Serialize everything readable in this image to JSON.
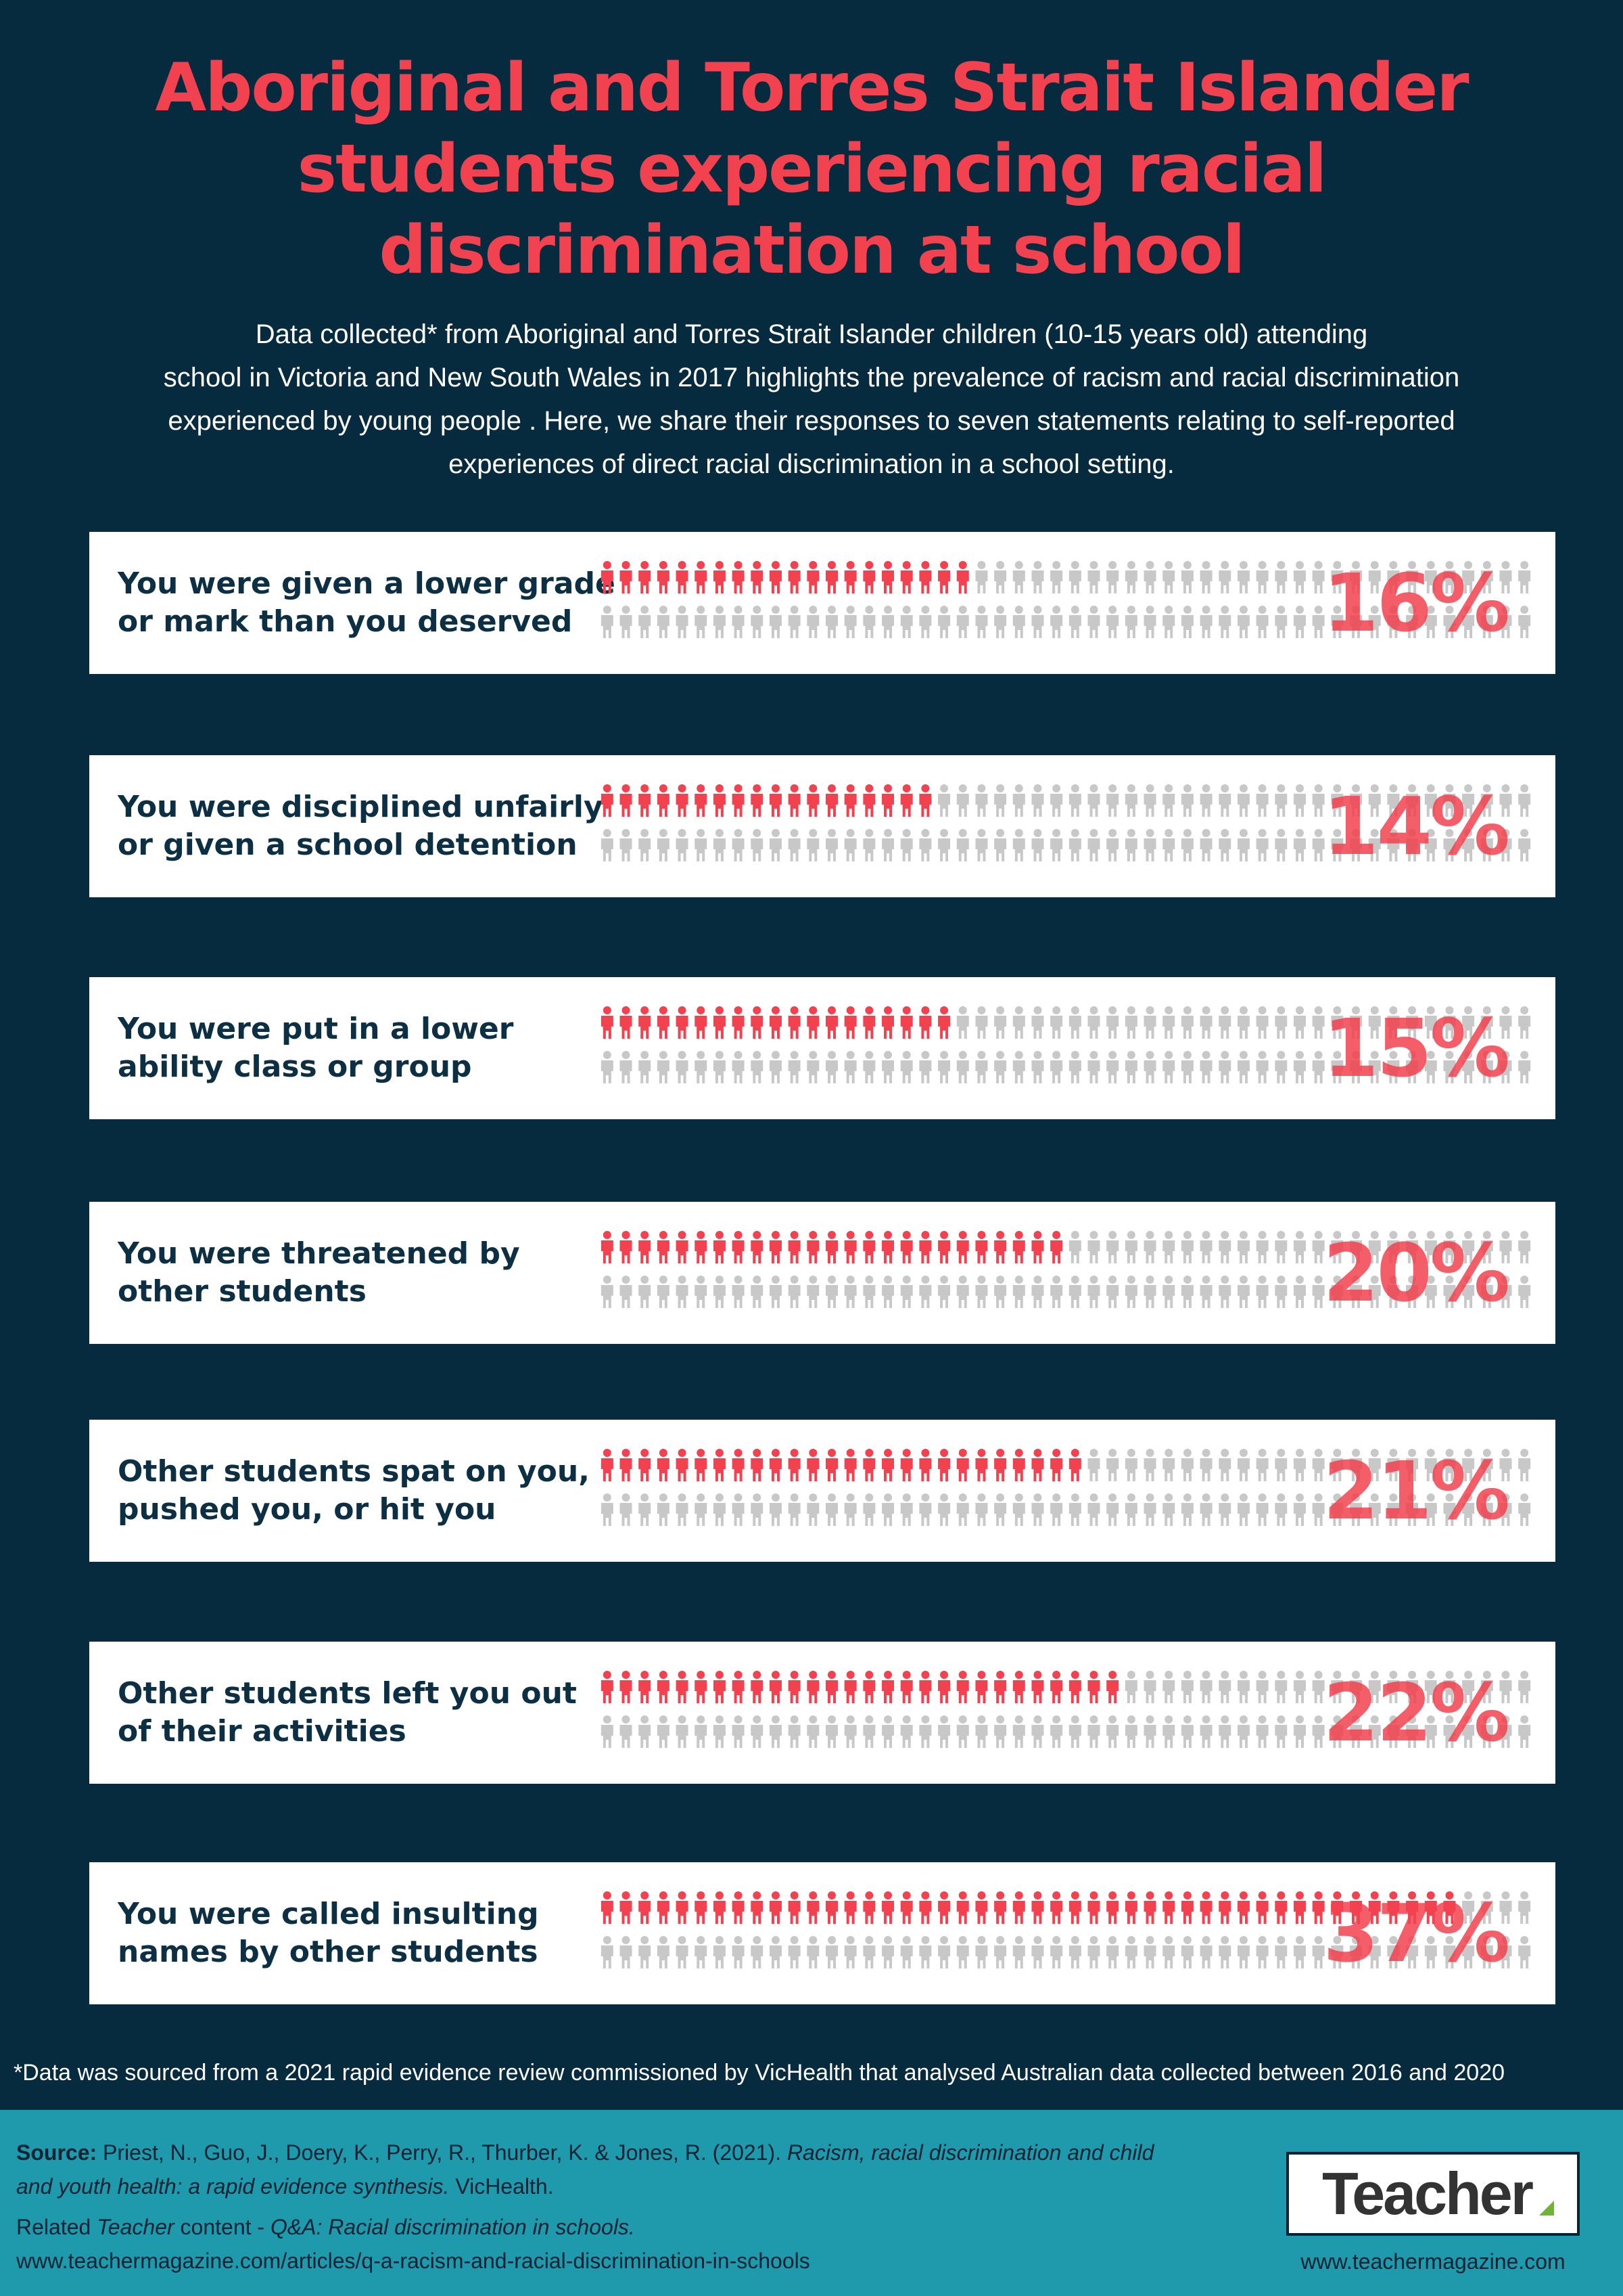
{
  "title": {
    "line1": "Aboriginal and Torres Strait Islander",
    "line2": "students experiencing racial",
    "line3": "discrimination at school"
  },
  "intro": {
    "line1": "Data collected* from Aboriginal and Torres Strait Islander children (10-15 years old) attending",
    "line2": "school in Victoria and New South Wales in 2017 highlights the prevalence of racism and racial discrimination",
    "line3": "experienced by young people . Here, we share their responses to seven statements relating to self-reported",
    "line4": "experiences of direct racial discrimination in a school setting."
  },
  "colors": {
    "background": "#062b3f",
    "accent": "#f2424f",
    "icon_inactive": "#c8c8c8",
    "footer": "#1f9aad"
  },
  "chart_data": {
    "type": "pictogram",
    "icons_per_chart": 100,
    "icon": "person-icon",
    "items": [
      {
        "line1": "You were given a lower grade",
        "line2": "or mark than you deserved",
        "value": 16,
        "label": "16%"
      },
      {
        "line1": "You were disciplined unfairly",
        "line2": "or given a school detention",
        "value": 14,
        "label": "14%"
      },
      {
        "line1": "You were put in a lower",
        "line2": "ability class or group",
        "value": 15,
        "label": "15%"
      },
      {
        "line1": "You were threatened by",
        "line2": "other students",
        "value": 20,
        "label": "20%"
      },
      {
        "line1": "Other students spat on you,",
        "line2": "pushed you, or hit you",
        "value": 21,
        "label": "21%"
      },
      {
        "line1": "Other students left you out",
        "line2": "of their activities",
        "value": 22,
        "label": "22%"
      },
      {
        "line1": "You were called insulting",
        "line2": "names by other students",
        "value": 37,
        "label": "37%"
      }
    ]
  },
  "footnote": "*Data was sourced from a 2021 rapid evidence review commissioned by VicHealth that analysed Australian data collected between 2016 and 2020",
  "source": {
    "label": "Source:",
    "authors": " Priest, N., Guo, J., Doery, K., Perry, R., Thurber, K. & Jones, R. (2021). ",
    "title_part1": "Racism, racial discrimination and child",
    "title_part2": "and youth health: a rapid evidence synthesis.",
    "publisher": " VicHealth."
  },
  "related": {
    "prefix": "Related ",
    "teacher": "Teacher",
    "middle": " content - ",
    "article": "Q&A: Racial discrimination in schools.",
    "url": "www.teachermagazine.com/articles/q-a-racism-and-racial-discrimination-in-schools"
  },
  "logo": {
    "text": "Teacher",
    "site": "www.teachermagazine.com"
  }
}
